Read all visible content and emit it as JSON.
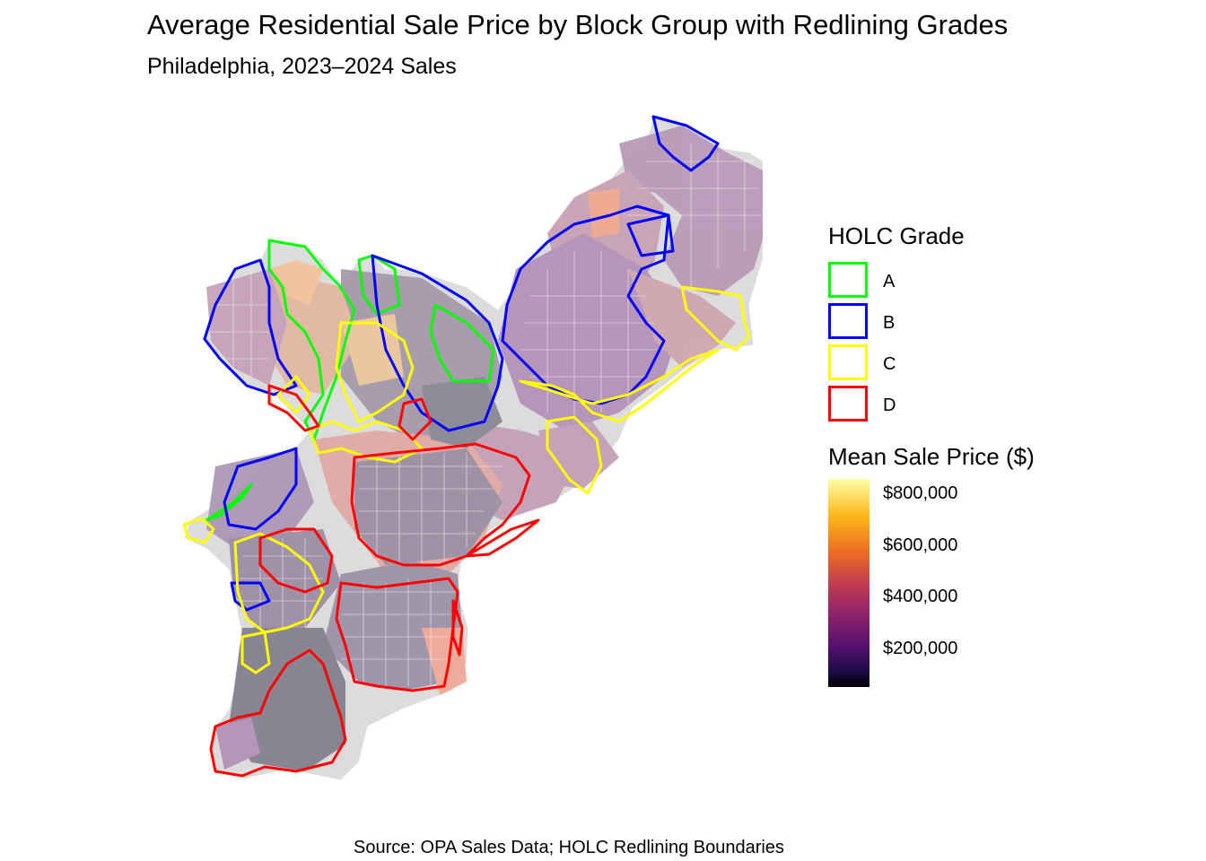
{
  "title": "Average Residential Sale Price by Block Group with Redlining Grades",
  "subtitle": "Philadelphia, 2023–2024 Sales",
  "caption": "Source: OPA Sales Data; HOLC Redlining Boundaries",
  "legend": {
    "holc_title": "HOLC Grade",
    "holc": [
      {
        "label": "A",
        "color": "#00ff00"
      },
      {
        "label": "B",
        "color": "#0000ff"
      },
      {
        "label": "C",
        "color": "#ffff00"
      },
      {
        "label": "D",
        "color": "#ff0000"
      }
    ],
    "price_title": "Mean Sale Price ($)",
    "price_ticks": [
      {
        "label": "$800,000",
        "value": 800000
      },
      {
        "label": "$600,000",
        "value": 600000
      },
      {
        "label": "$400,000",
        "value": 400000
      },
      {
        "label": "$200,000",
        "value": 200000
      }
    ],
    "price_range": [
      50000,
      850000
    ],
    "palette": "inferno"
  },
  "colors": {
    "missing": "#e0e0e0",
    "fill_low": "#8a8a96",
    "fill_mid": "#b89ab8",
    "fill_high": "#e6a79a"
  }
}
